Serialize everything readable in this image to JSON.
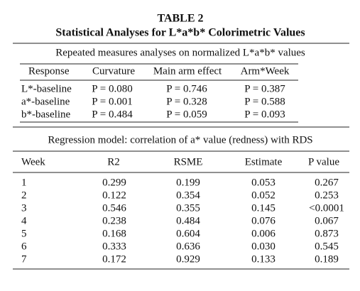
{
  "header": {
    "label": "TABLE 2",
    "title": "Statistical Analyses for L*a*b* Colorimetric Values"
  },
  "table1": {
    "caption": "Repeated measures analyses on normalized L*a*b* values",
    "columns": [
      "Response",
      "Curvature",
      "Main arm effect",
      "Arm*Week"
    ],
    "rows": [
      [
        "L*-baseline",
        "P = 0.080",
        "P = 0.746",
        "P = 0.387"
      ],
      [
        "a*-baseline",
        "P = 0.001",
        "P = 0.328",
        "P = 0.588"
      ],
      [
        "b*-baseline",
        "P = 0.484",
        "P = 0.059",
        "P = 0.093"
      ]
    ]
  },
  "table2": {
    "caption": "Regression model: correlation of a* value (redness) with RDS",
    "columns": [
      "Week",
      "R2",
      "RSME",
      "Estimate",
      "P value"
    ],
    "rows": [
      [
        "1",
        "0.299",
        "0.199",
        "0.053",
        "0.267"
      ],
      [
        "2",
        "0.122",
        "0.354",
        "0.052",
        "0.253"
      ],
      [
        "3",
        "0.546",
        "0.355",
        "0.145",
        "<0.0001"
      ],
      [
        "4",
        "0.238",
        "0.484",
        "0.076",
        "0.067"
      ],
      [
        "5",
        "0.168",
        "0.604",
        "0.006",
        "0.873"
      ],
      [
        "6",
        "0.333",
        "0.636",
        "0.030",
        "0.545"
      ],
      [
        "7",
        "0.172",
        "0.929",
        "0.133",
        "0.189"
      ]
    ]
  }
}
